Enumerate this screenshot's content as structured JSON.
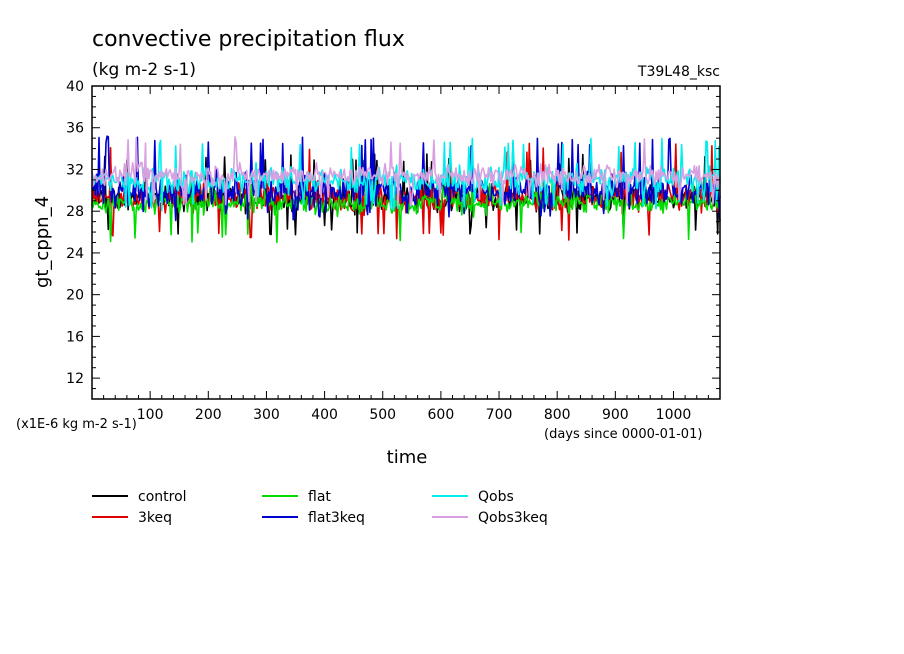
{
  "chart_data": {
    "type": "line",
    "title": "convective precipitation flux",
    "subtitle": "(kg m-2 s-1)",
    "annotation_right": "T39L48_ksc",
    "ylabel": "gt_cppn_4",
    "xlabel": "time",
    "x_units_note": "(days since 0000-01-01)",
    "y_scale_note": "(x1E-6 kg m-2 s-1)",
    "xlim": [
      0,
      1080
    ],
    "ylim": [
      10,
      40
    ],
    "x_ticks": [
      100,
      200,
      300,
      400,
      500,
      600,
      700,
      800,
      900,
      1000
    ],
    "y_ticks": [
      12,
      16,
      20,
      24,
      28,
      32,
      36,
      40
    ],
    "grid": false,
    "legend_placement": "bottom",
    "series": [
      {
        "name": "control",
        "color": "#000000",
        "mean": 29.2,
        "spread": 1.8,
        "min": 25.7,
        "max": 33.5
      },
      {
        "name": "3keq",
        "color": "#e00000",
        "mean": 29.3,
        "spread": 2.0,
        "min": 25.2,
        "max": 34.5
      },
      {
        "name": "flat",
        "color": "#00dd00",
        "mean": 28.8,
        "spread": 1.5,
        "min": 25.0,
        "max": 31.5
      },
      {
        "name": "flat3keq",
        "color": "#0000d0",
        "mean": 30.0,
        "spread": 2.2,
        "min": 27.0,
        "max": 35.2
      },
      {
        "name": "Qobs",
        "color": "#00eeee",
        "mean": 31.0,
        "spread": 1.9,
        "min": 28.0,
        "max": 35.0
      },
      {
        "name": "Qobs3keq",
        "color": "#d8a0e0",
        "mean": 31.5,
        "spread": 1.6,
        "min": 28.5,
        "max": 35.2
      }
    ]
  }
}
